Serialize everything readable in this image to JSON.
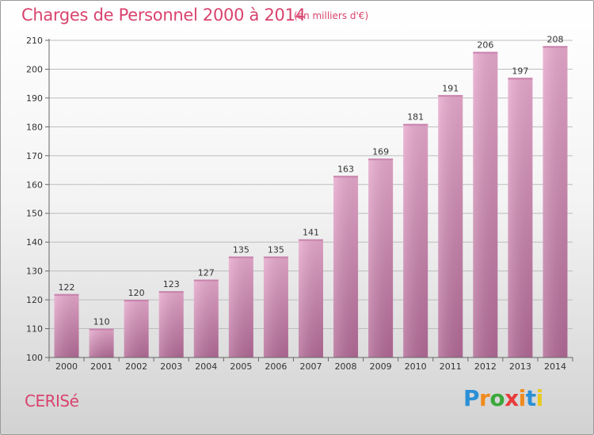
{
  "title": "Charges de Personnel 2000 à 2014",
  "unit_label": "(en milliers d'€)",
  "commune": "CERISé",
  "logo_text": "Proxiti",
  "colors": {
    "accent": "#d9436e",
    "bar_light": "#e7a9cd",
    "bar_dark": "#b26a96",
    "grid": "#bdbdbd"
  },
  "chart_data": {
    "type": "bar",
    "title": "Charges de Personnel 2000 à 2014",
    "subtitle": "(en milliers d'€)",
    "categories": [
      "2000",
      "2001",
      "2002",
      "2003",
      "2004",
      "2005",
      "2006",
      "2007",
      "2008",
      "2009",
      "2010",
      "2011",
      "2012",
      "2013",
      "2014"
    ],
    "values": [
      122,
      110,
      120,
      123,
      127,
      135,
      135,
      141,
      163,
      169,
      181,
      191,
      206,
      197,
      208
    ],
    "yticks": [
      100,
      110,
      120,
      130,
      140,
      150,
      160,
      170,
      180,
      190,
      200,
      210
    ],
    "ylim": [
      100,
      210
    ],
    "grid": true,
    "legend": "none",
    "data_labels": true
  }
}
